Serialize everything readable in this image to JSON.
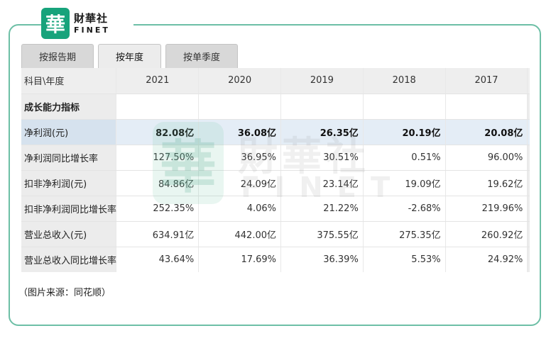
{
  "logo": {
    "badge_char": "華",
    "cn": "財華社",
    "en": "FINET"
  },
  "watermark": {
    "badge_char": "華",
    "cn": "財華社",
    "en": "FINET"
  },
  "tabs": [
    {
      "label": "按报告期",
      "active": false
    },
    {
      "label": "按年度",
      "active": true
    },
    {
      "label": "按单季度",
      "active": false
    }
  ],
  "table": {
    "header_label": "科目\\年度",
    "years": [
      "2021",
      "2020",
      "2019",
      "2018",
      "2017"
    ],
    "section_label": "成长能力指标",
    "rows": [
      {
        "label": "净利润(元)",
        "values": [
          "82.08亿",
          "36.08亿",
          "26.35亿",
          "20.19亿",
          "20.08亿"
        ],
        "highlight": true
      },
      {
        "label": "净利润同比增长率",
        "values": [
          "127.50%",
          "36.95%",
          "30.51%",
          "0.51%",
          "96.00%"
        ]
      },
      {
        "label": "扣非净利润(元)",
        "values": [
          "84.86亿",
          "24.09亿",
          "23.14亿",
          "19.09亿",
          "19.62亿"
        ]
      },
      {
        "label": "扣非净利润同比增长率",
        "values": [
          "252.35%",
          "4.06%",
          "21.22%",
          "-2.68%",
          "219.96%"
        ]
      },
      {
        "label": "营业总收入(元)",
        "values": [
          "634.91亿",
          "442.00亿",
          "375.55亿",
          "275.35亿",
          "260.92亿"
        ]
      },
      {
        "label": "营业总收入同比增长率",
        "values": [
          "43.64%",
          "17.69%",
          "36.39%",
          "5.53%",
          "24.92%"
        ]
      }
    ]
  },
  "caption": "（图片来源：同花顺）",
  "colors": {
    "frame": "#6dbfa6",
    "logo_green": "#17a37b",
    "highlight_row": "#e4edf6"
  }
}
